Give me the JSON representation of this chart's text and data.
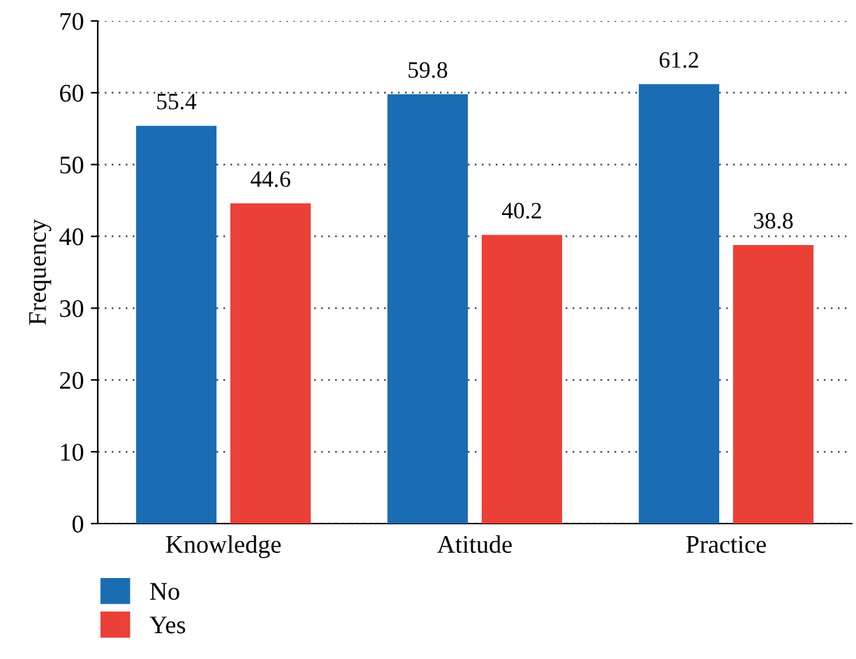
{
  "chart_data": {
    "type": "bar",
    "ylabel": "Frequency",
    "categories": [
      "Knowledge",
      "Atitude",
      "Practice"
    ],
    "series": [
      {
        "name": "No",
        "color": "#1a6db3",
        "values": [
          55.4,
          59.8,
          61.2
        ]
      },
      {
        "name": "Yes",
        "color": "#ea4038",
        "values": [
          44.6,
          40.2,
          38.8
        ]
      }
    ],
    "ylim": [
      0,
      70
    ],
    "yticks": [
      0,
      10,
      20,
      30,
      40,
      50,
      60,
      70
    ],
    "grid": "y",
    "legend": "bottom left",
    "data_labels": true
  }
}
